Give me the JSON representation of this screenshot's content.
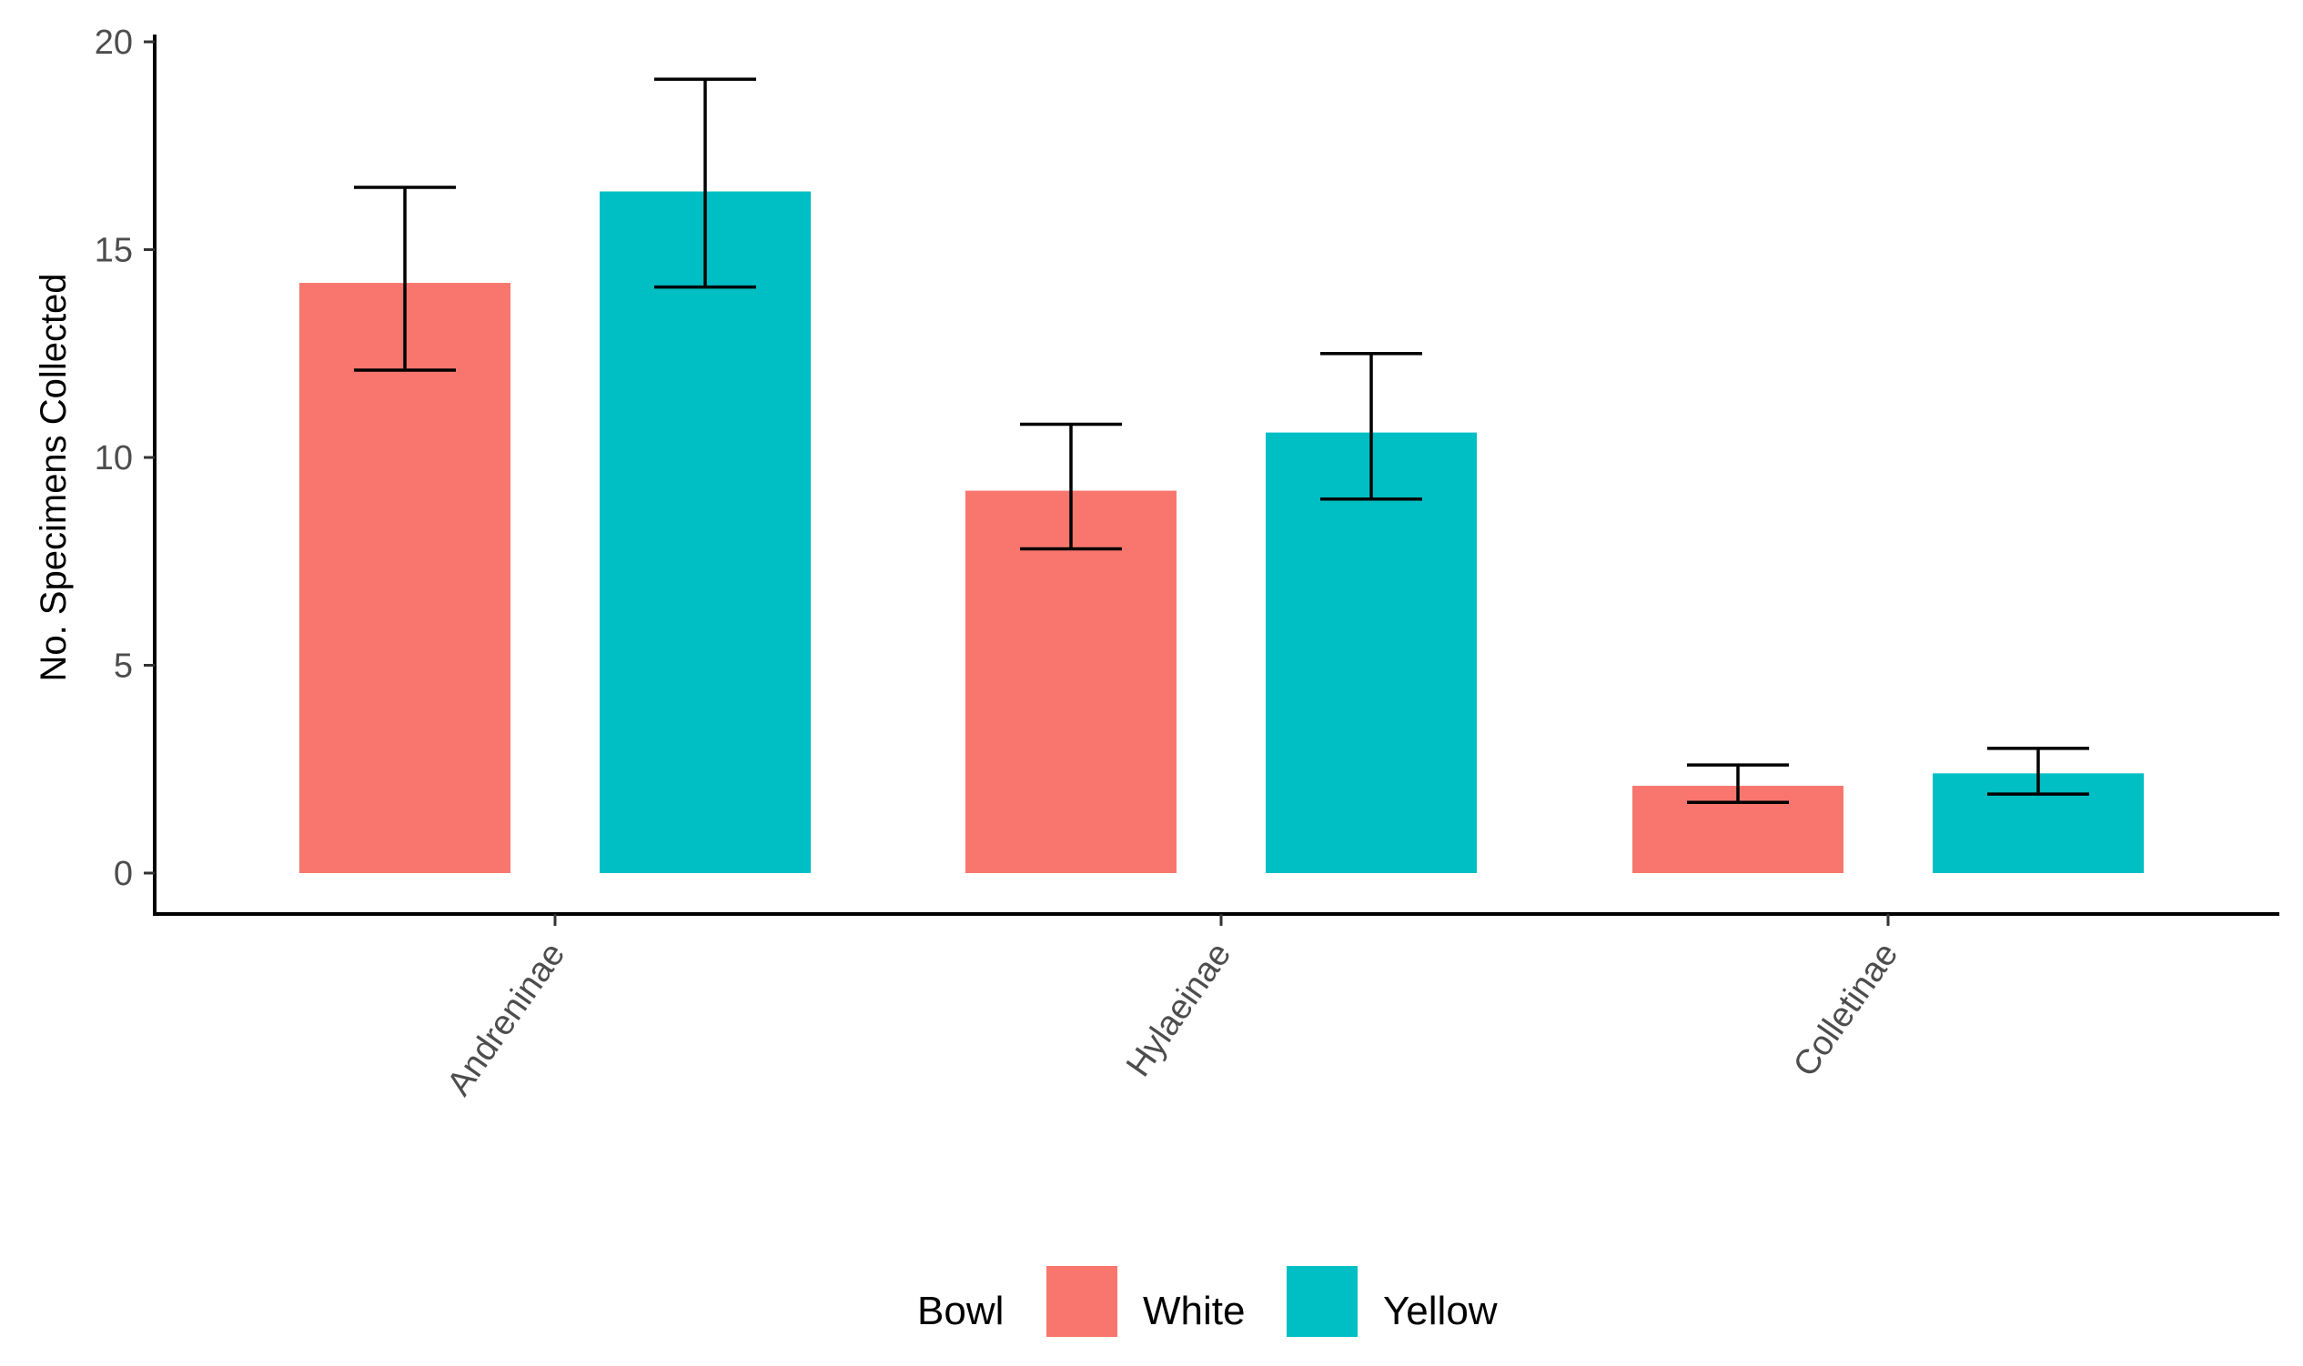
{
  "chart_data": {
    "type": "bar",
    "title": "",
    "xlabel": "",
    "ylabel": "No. Specimens Collected",
    "categories": [
      "Andreninae",
      "Hylaeinae",
      "Colletinae"
    ],
    "series": [
      {
        "name": "White",
        "color": "#F8766D",
        "values": [
          14.2,
          9.2,
          2.1
        ],
        "error_low": [
          12.1,
          7.8,
          1.7
        ],
        "error_high": [
          16.5,
          10.8,
          2.6
        ]
      },
      {
        "name": "Yellow",
        "color": "#00BFC4",
        "values": [
          16.4,
          10.6,
          2.4
        ],
        "error_low": [
          14.1,
          9.0,
          1.9
        ],
        "error_high": [
          19.1,
          12.5,
          3.0
        ]
      }
    ],
    "ylim": [
      -1,
      20
    ],
    "yticks": [
      0,
      5,
      10,
      15,
      20
    ],
    "grid": false,
    "legend": {
      "title": "Bowl",
      "position": "bottom"
    }
  }
}
